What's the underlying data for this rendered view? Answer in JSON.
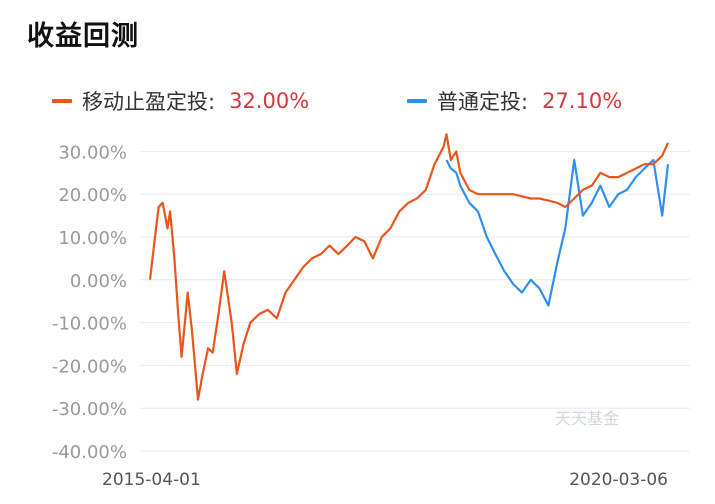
{
  "title": "收益回测",
  "watermark": "天天基金",
  "chart_data": {
    "type": "line",
    "x_range_labels": [
      "2015-04-01",
      "2020-03-06"
    ],
    "yticks": [
      "30.00%",
      "20.00%",
      "10.00%",
      "0.00%",
      "-10.00%",
      "-20.00%",
      "-30.00%",
      "-40.00%"
    ],
    "ylim": [
      -40,
      35
    ],
    "grid": "horizontal",
    "legend_position": "top",
    "series": [
      {
        "name": "移动止盈定投:",
        "final_value": "32.00%",
        "color": "#e8561e",
        "x": [
          "2015-04-01",
          "2015-04-15",
          "2015-05-01",
          "2015-05-15",
          "2015-06-01",
          "2015-06-10",
          "2015-06-25",
          "2015-07-08",
          "2015-07-20",
          "2015-08-10",
          "2015-08-25",
          "2015-09-15",
          "2015-10-01",
          "2015-10-20",
          "2015-11-05",
          "2015-11-25",
          "2015-12-15",
          "2016-01-10",
          "2016-01-28",
          "2016-02-20",
          "2016-03-15",
          "2016-04-15",
          "2016-05-15",
          "2016-06-15",
          "2016-07-15",
          "2016-08-15",
          "2016-09-15",
          "2016-10-15",
          "2016-11-15",
          "2016-12-15",
          "2017-01-15",
          "2017-02-15",
          "2017-03-15",
          "2017-04-15",
          "2017-05-15",
          "2017-06-15",
          "2017-07-15",
          "2017-08-15",
          "2017-09-15",
          "2017-10-15",
          "2017-11-15",
          "2017-12-15",
          "2018-01-15",
          "2018-01-26",
          "2018-02-10",
          "2018-03-01",
          "2018-03-15",
          "2018-04-15",
          "2018-05-15",
          "2018-06-15",
          "2018-07-15",
          "2018-08-15",
          "2018-09-15",
          "2018-10-15",
          "2018-11-15",
          "2018-12-15",
          "2019-01-15",
          "2019-02-15",
          "2019-03-15",
          "2019-04-15",
          "2019-05-15",
          "2019-06-15",
          "2019-07-15",
          "2019-08-15",
          "2019-09-15",
          "2019-10-15",
          "2019-11-15",
          "2019-12-15",
          "2020-01-15",
          "2020-02-15",
          "2020-03-06"
        ],
        "values": [
          0,
          8,
          17,
          18,
          12,
          16,
          5,
          -8,
          -18,
          -3,
          -12,
          -28,
          -22,
          -16,
          -17,
          -8,
          2,
          -10,
          -22,
          -15,
          -10,
          -8,
          -7,
          -9,
          -3,
          0,
          3,
          5,
          6,
          8,
          6,
          8,
          10,
          9,
          5,
          10,
          12,
          16,
          18,
          19,
          21,
          27,
          31,
          34,
          28,
          30,
          25,
          21,
          20,
          20,
          20,
          20,
          20,
          19.5,
          19,
          19,
          18.5,
          18,
          17,
          19,
          21,
          22,
          25,
          24,
          24,
          25,
          26,
          27,
          27,
          29,
          32
        ]
      },
      {
        "name": "普通定投:",
        "final_value": "27.10%",
        "color": "#2f8ff1",
        "x": [
          "2018-01-26",
          "2018-02-10",
          "2018-03-01",
          "2018-03-15",
          "2018-04-15",
          "2018-05-15",
          "2018-06-15",
          "2018-07-15",
          "2018-08-15",
          "2018-09-15",
          "2018-10-15",
          "2018-11-15",
          "2018-12-15",
          "2019-01-15",
          "2019-02-15",
          "2019-03-15",
          "2019-04-15",
          "2019-05-15",
          "2019-06-15",
          "2019-07-15",
          "2019-08-15",
          "2019-09-15",
          "2019-10-15",
          "2019-11-15",
          "2019-12-15",
          "2020-01-15",
          "2020-02-15",
          "2020-03-06"
        ],
        "values": [
          28,
          26,
          25,
          22,
          18,
          16,
          10,
          6,
          2,
          -1,
          -3,
          0,
          -2,
          -6,
          4,
          12,
          28,
          15,
          18,
          22,
          17,
          20,
          21,
          24,
          26,
          28,
          15,
          27
        ]
      }
    ]
  }
}
